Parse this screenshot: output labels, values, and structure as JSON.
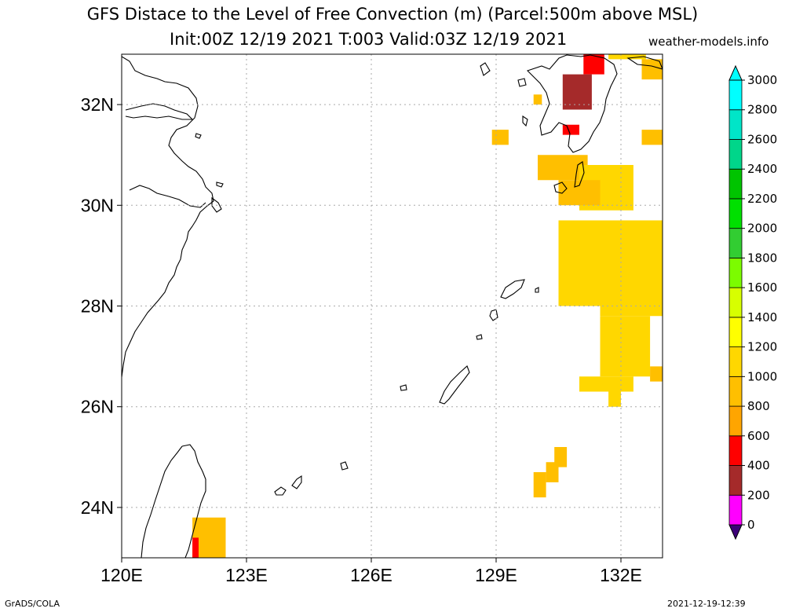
{
  "title": {
    "line1": "GFS Distace to the Level of Free Convection (m) (Parcel:500m above MSL)",
    "line2": "Init:00Z 12/19 2021 T:003 Valid:03Z 12/19 2021",
    "credit": "weather-models.info"
  },
  "footer": {
    "left": "GrADS/COLA",
    "right": "2021-12-19-12:39"
  },
  "map": {
    "lon_range": [
      120,
      133
    ],
    "lat_range": [
      23,
      33
    ],
    "lon_ticks": [
      120,
      123,
      126,
      129,
      132
    ],
    "lon_tick_labels": [
      "120E",
      "123E",
      "126E",
      "129E",
      "132E"
    ],
    "lat_ticks": [
      24,
      26,
      28,
      30,
      32
    ],
    "lat_tick_labels": [
      "24N",
      "26N",
      "28N",
      "30N",
      "32N"
    ],
    "grid": true,
    "grid_style": "dotted"
  },
  "colorbar": {
    "levels": [
      0,
      200,
      400,
      600,
      800,
      1000,
      1200,
      1400,
      1600,
      1800,
      2000,
      2200,
      2400,
      2600,
      2800,
      3000
    ],
    "labels": [
      "0",
      "200",
      "400",
      "600",
      "800",
      "1000",
      "1200",
      "1400",
      "1600",
      "1800",
      "2000",
      "2200",
      "2400",
      "2600",
      "2800",
      "3000"
    ],
    "colors": [
      "#3c0078",
      "#ff00ff",
      "#a52a2a",
      "#ff0000",
      "#ffa500",
      "#ffbf00",
      "#ffd700",
      "#ffff00",
      "#d7ff00",
      "#7cfc00",
      "#32cd32",
      "#00e000",
      "#00c400",
      "#00d68a",
      "#00e5c8",
      "#00ffff"
    ],
    "extend": "both"
  },
  "field": {
    "units": "m",
    "shaded_areas": [
      {
        "lon": [
          131.1,
          131.6,
          131.6,
          131.1
        ],
        "lat": [
          32.6,
          32.6,
          33.0,
          33.0
        ],
        "value": 500
      },
      {
        "lon": [
          130.6,
          131.3,
          131.3,
          130.6
        ],
        "lat": [
          31.9,
          31.9,
          32.6,
          32.6
        ],
        "value": 350
      },
      {
        "lon": [
          130.6,
          131.0,
          131.0,
          130.6
        ],
        "lat": [
          31.4,
          31.4,
          31.6,
          31.6
        ],
        "value": 500
      },
      {
        "lon": [
          131.7,
          132.6,
          132.6,
          131.7
        ],
        "lat": [
          32.9,
          32.9,
          33.0,
          33.0
        ],
        "value": 1000
      },
      {
        "lon": [
          132.5,
          133.0,
          133.0,
          132.5
        ],
        "lat": [
          32.5,
          32.5,
          32.9,
          32.9
        ],
        "value": 900
      },
      {
        "lon": [
          129.9,
          130.1,
          130.1,
          129.9
        ],
        "lat": [
          32.0,
          32.0,
          32.2,
          32.2
        ],
        "value": 900
      },
      {
        "lon": [
          128.9,
          129.3,
          129.3,
          128.9
        ],
        "lat": [
          31.2,
          31.2,
          31.5,
          31.5
        ],
        "value": 900
      },
      {
        "lon": [
          132.5,
          133.0,
          133.0,
          132.5
        ],
        "lat": [
          31.2,
          31.2,
          31.5,
          31.5
        ],
        "value": 900
      },
      {
        "lon": [
          130.0,
          131.2,
          131.2,
          130.0
        ],
        "lat": [
          30.5,
          30.5,
          31.0,
          31.0
        ],
        "value": 950
      },
      {
        "lon": [
          131.0,
          132.3,
          132.3,
          131.0
        ],
        "lat": [
          29.9,
          29.9,
          30.8,
          30.8
        ],
        "value": 1000
      },
      {
        "lon": [
          130.5,
          131.5,
          131.5,
          130.5
        ],
        "lat": [
          30.0,
          30.0,
          30.5,
          30.5
        ],
        "value": 900
      },
      {
        "lon": [
          130.5,
          133.0,
          133.0,
          130.5
        ],
        "lat": [
          28.0,
          28.0,
          29.7,
          29.7
        ],
        "value": 1050
      },
      {
        "lon": [
          131.5,
          133.0,
          133.0,
          131.5
        ],
        "lat": [
          27.8,
          27.8,
          28.6,
          28.6
        ],
        "value": 1050
      },
      {
        "lon": [
          131.5,
          132.7,
          132.7,
          131.5
        ],
        "lat": [
          26.6,
          26.6,
          27.8,
          27.8
        ],
        "value": 1050
      },
      {
        "lon": [
          131.0,
          132.3,
          132.3,
          131.0
        ],
        "lat": [
          26.3,
          26.3,
          26.6,
          26.6
        ],
        "value": 1000
      },
      {
        "lon": [
          131.7,
          132.0,
          132.0,
          131.7
        ],
        "lat": [
          26.0,
          26.0,
          26.3,
          26.3
        ],
        "value": 1000
      },
      {
        "lon": [
          132.7,
          133.0,
          133.0,
          132.7
        ],
        "lat": [
          26.5,
          26.5,
          26.8,
          26.8
        ],
        "value": 900
      },
      {
        "lon": [
          130.4,
          130.7,
          130.7,
          130.4
        ],
        "lat": [
          24.8,
          24.8,
          25.2,
          25.2
        ],
        "value": 900
      },
      {
        "lon": [
          130.2,
          130.5,
          130.5,
          130.2
        ],
        "lat": [
          24.5,
          24.5,
          24.9,
          24.9
        ],
        "value": 900
      },
      {
        "lon": [
          129.9,
          130.2,
          130.2,
          129.9
        ],
        "lat": [
          24.2,
          24.2,
          24.7,
          24.7
        ],
        "value": 900
      },
      {
        "lon": [
          121.7,
          122.5,
          122.5,
          121.7
        ],
        "lat": [
          23.0,
          23.0,
          23.8,
          23.8
        ],
        "value": 800
      },
      {
        "lon": [
          121.7,
          121.85,
          121.85,
          121.7
        ],
        "lat": [
          23.0,
          23.0,
          23.4,
          23.4
        ],
        "value": 550
      }
    ]
  }
}
